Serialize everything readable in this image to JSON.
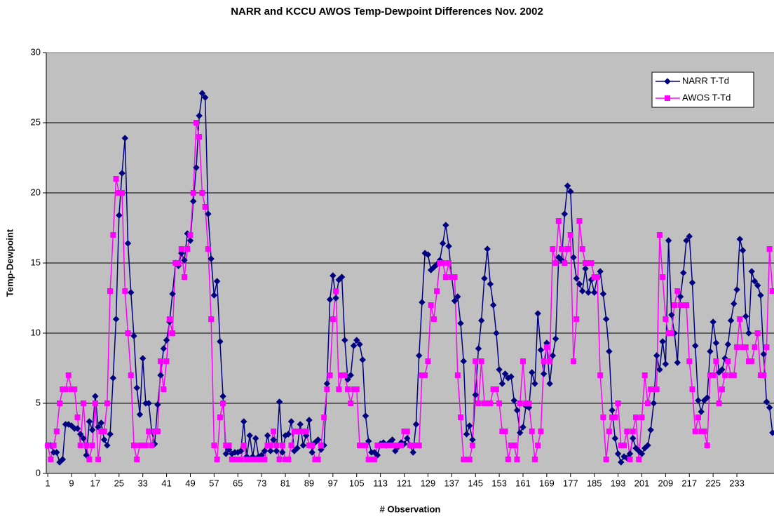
{
  "chart_data": {
    "type": "line",
    "title": "NARR and KCCU AWOS Temp-Dewpoint Differences Nov. 2002",
    "x_label": "# Observation",
    "y_label": "Temp-Dewpoint",
    "x": [
      1,
      2,
      3,
      4,
      5,
      6,
      7,
      8,
      9,
      10,
      11,
      12,
      13,
      14,
      15,
      16,
      17,
      18,
      19,
      20,
      21,
      22,
      23,
      24,
      25,
      26,
      27,
      28,
      29,
      30,
      31,
      32,
      33,
      34,
      35,
      36,
      37,
      38,
      39,
      40,
      41,
      42,
      43,
      44,
      45,
      46,
      47,
      48,
      49,
      50,
      51,
      52,
      53,
      54,
      55,
      56,
      57,
      58,
      59,
      60,
      61,
      62,
      63,
      64,
      65,
      66,
      67,
      68,
      69,
      70,
      71,
      72,
      73,
      74,
      75,
      76,
      77,
      78,
      79,
      80,
      81,
      82,
      83,
      84,
      85,
      86,
      87,
      88,
      89,
      90,
      91,
      92,
      93,
      94,
      95,
      96,
      97,
      98,
      99,
      100,
      101,
      102,
      103,
      104,
      105,
      106,
      107,
      108,
      109,
      110,
      111,
      112,
      113,
      114,
      115,
      116,
      117,
      118,
      119,
      120,
      121,
      122,
      123,
      124,
      125,
      126,
      127,
      128,
      129,
      130,
      131,
      132,
      133,
      134,
      135,
      136,
      137,
      138,
      139,
      140,
      141,
      142,
      143,
      144,
      145,
      146,
      147,
      148,
      149,
      150,
      151,
      152,
      153,
      154,
      155,
      156,
      157,
      158,
      159,
      160,
      161,
      162,
      163,
      164,
      165,
      166,
      167,
      168,
      169,
      170,
      171,
      172,
      173,
      174,
      175,
      176,
      177,
      178,
      179,
      180,
      181,
      182,
      183,
      184,
      185,
      186,
      187,
      188,
      189,
      190,
      191,
      192,
      193,
      194,
      195,
      196,
      197,
      198,
      199,
      200,
      201,
      202,
      203,
      204,
      205,
      206,
      207,
      208,
      209,
      210,
      211,
      212,
      213,
      214,
      215,
      216,
      217,
      218,
      219,
      220,
      221,
      222,
      223,
      224,
      225,
      226,
      227,
      228,
      229,
      230,
      231,
      232,
      233,
      234,
      235,
      236,
      237,
      238,
      239,
      240,
      241,
      242,
      243,
      244,
      245
    ],
    "series": [
      {
        "name": "NARR T-Td",
        "color": "#000080",
        "marker": "diamond",
        "values": [
          2,
          2,
          1.5,
          1.5,
          0.8,
          1.0,
          3.5,
          3.5,
          3.4,
          3.2,
          3.2,
          2.8,
          2.5,
          1.3,
          3.7,
          3.1,
          5.5,
          3.3,
          3.6,
          2.4,
          2.0,
          2.8,
          6.8,
          11,
          18.4,
          21.4,
          23.9,
          16.4,
          12.9,
          9.8,
          6.1,
          4.2,
          8.2,
          5,
          5,
          3,
          2.1,
          4.9,
          7,
          8.9,
          9.5,
          10.8,
          12.8,
          15,
          14.8,
          15.7,
          15.2,
          17.1,
          16.6,
          19.4,
          21.8,
          25.5,
          27.1,
          26.8,
          18.5,
          15.3,
          12.7,
          13.7,
          9.4,
          5.5,
          1.4,
          1.7,
          1.4,
          1.5,
          1.5,
          1.6,
          3.7,
          1.2,
          2.7,
          1.2,
          2.5,
          1.2,
          1.3,
          1.6,
          2.7,
          1.6,
          2.4,
          1.6,
          5.1,
          1.5,
          2.7,
          2.8,
          3.7,
          1.6,
          1.8,
          3.5,
          2.0,
          2.7,
          3.8,
          1.5,
          2.2,
          2.4,
          1.7,
          2.0,
          6.4,
          12.4,
          14.1,
          12.5,
          13.8,
          14,
          9.5,
          6.7,
          7,
          9.1,
          9.5,
          9.2,
          8.1,
          4.1,
          2.3,
          1.5,
          1.5,
          1.3,
          2.1,
          2.2,
          2.0,
          2.2,
          2.4,
          1.6,
          1.9,
          2.2,
          2.1,
          2.5,
          2.0,
          1.5,
          3.5,
          8.4,
          12.2,
          15.7,
          15.6,
          14.5,
          14.7,
          14.9,
          15.2,
          16.4,
          17.7,
          16.2,
          14,
          12.3,
          12.6,
          10.7,
          8,
          2.8,
          3.4,
          2.4,
          5.6,
          8.9,
          10.9,
          13.9,
          16,
          13.5,
          12,
          10,
          7.4,
          6.4,
          7.1,
          6.8,
          6.9,
          5.2,
          4.5,
          2.9,
          3.3,
          4.8,
          4.7,
          7.2,
          6.4,
          11.4,
          8.8,
          7.1,
          9.3,
          6.4,
          8.4,
          9.6,
          15.4,
          15.2,
          18.5,
          20.5,
          20.1,
          15.4,
          13.9,
          13.5,
          13,
          14.6,
          12.9,
          13.8,
          12.9,
          14,
          14.4,
          12.8,
          11,
          8.7,
          4.5,
          2.5,
          1.4,
          0.8,
          1.2,
          1.1,
          1.4,
          2.5,
          1.8,
          1.6,
          1.4,
          1.8,
          2.0,
          3.1,
          5,
          8.4,
          7.4,
          9.4,
          7.8,
          16.6,
          11.3,
          10,
          7.9,
          12.6,
          14.3,
          16.6,
          16.9,
          13.6,
          9.1,
          5.2,
          4.4,
          5.2,
          5.4,
          8.7,
          10.8,
          9.3,
          7.2,
          7.4,
          8.2,
          9.2,
          10.9,
          12.1,
          13.1,
          16.7,
          15.9,
          11.2,
          10,
          14.4,
          13.7,
          13.4,
          12.7,
          8.5,
          5.1,
          4.7,
          2.9
        ]
      },
      {
        "name": "AWOS T-Td",
        "color": "#ff00ff",
        "marker": "square",
        "values": [
          2,
          1,
          2,
          3,
          5,
          6,
          6,
          7,
          6,
          6,
          4,
          2,
          5,
          2,
          1,
          2,
          5,
          1,
          3,
          3,
          5,
          13,
          17,
          21,
          20,
          20,
          13,
          10,
          7,
          2,
          1,
          2,
          2,
          2,
          3,
          2,
          3,
          3,
          8,
          6,
          8,
          11,
          10,
          15,
          15,
          16,
          14,
          16,
          17,
          20,
          25,
          24,
          20,
          19,
          16,
          11,
          2,
          1,
          4,
          5,
          2,
          2,
          1,
          1,
          1,
          1,
          2,
          1,
          1,
          1,
          1,
          1,
          1,
          1,
          2,
          2,
          3,
          2,
          1,
          2,
          1,
          1,
          2,
          3,
          3,
          3,
          3,
          3,
          2,
          2,
          1,
          1,
          2,
          4,
          6,
          7,
          11,
          13,
          6,
          7,
          7,
          6,
          5,
          6,
          6,
          2,
          2,
          2,
          1,
          1,
          1,
          2,
          2,
          2,
          2,
          2,
          2,
          2,
          2,
          2,
          3,
          3,
          2,
          2,
          2,
          2,
          7,
          7,
          8,
          12,
          11,
          13,
          15,
          15,
          14,
          15,
          14,
          14,
          7,
          4,
          1,
          1,
          1,
          2,
          8,
          5,
          8,
          5,
          5,
          5,
          6,
          6,
          5,
          3,
          3,
          1,
          2,
          2,
          1,
          5,
          8,
          5,
          5,
          3,
          1,
          2,
          3,
          8,
          9,
          8,
          16,
          15,
          18,
          16,
          15,
          16,
          17,
          8,
          11,
          18,
          16,
          15,
          15,
          15,
          14,
          14,
          7,
          4,
          1,
          3,
          4,
          4,
          5,
          2,
          2,
          3,
          1,
          3,
          4,
          1,
          4,
          7,
          5,
          6,
          6,
          6,
          17,
          14,
          11,
          10,
          10,
          12,
          13,
          12,
          12,
          12,
          8,
          6,
          3,
          4,
          3,
          3,
          2,
          7,
          7,
          8,
          5,
          6,
          7,
          8,
          7,
          7,
          9,
          11,
          9,
          9,
          8,
          8,
          9,
          10,
          7,
          7,
          9,
          16,
          13
        ]
      }
    ],
    "xlim": [
      0.5,
      245.5
    ],
    "xticks": [
      1,
      9,
      17,
      25,
      33,
      41,
      49,
      57,
      65,
      73,
      81,
      89,
      97,
      105,
      113,
      121,
      129,
      137,
      145,
      153,
      161,
      169,
      177,
      185,
      193,
      201,
      209,
      217,
      225,
      233
    ],
    "ylim": [
      0,
      30
    ],
    "yticks": [
      0,
      5,
      10,
      15,
      20,
      25,
      30
    ],
    "grid": true,
    "legend": "top-right",
    "plot_background": "#c0c0c0"
  }
}
